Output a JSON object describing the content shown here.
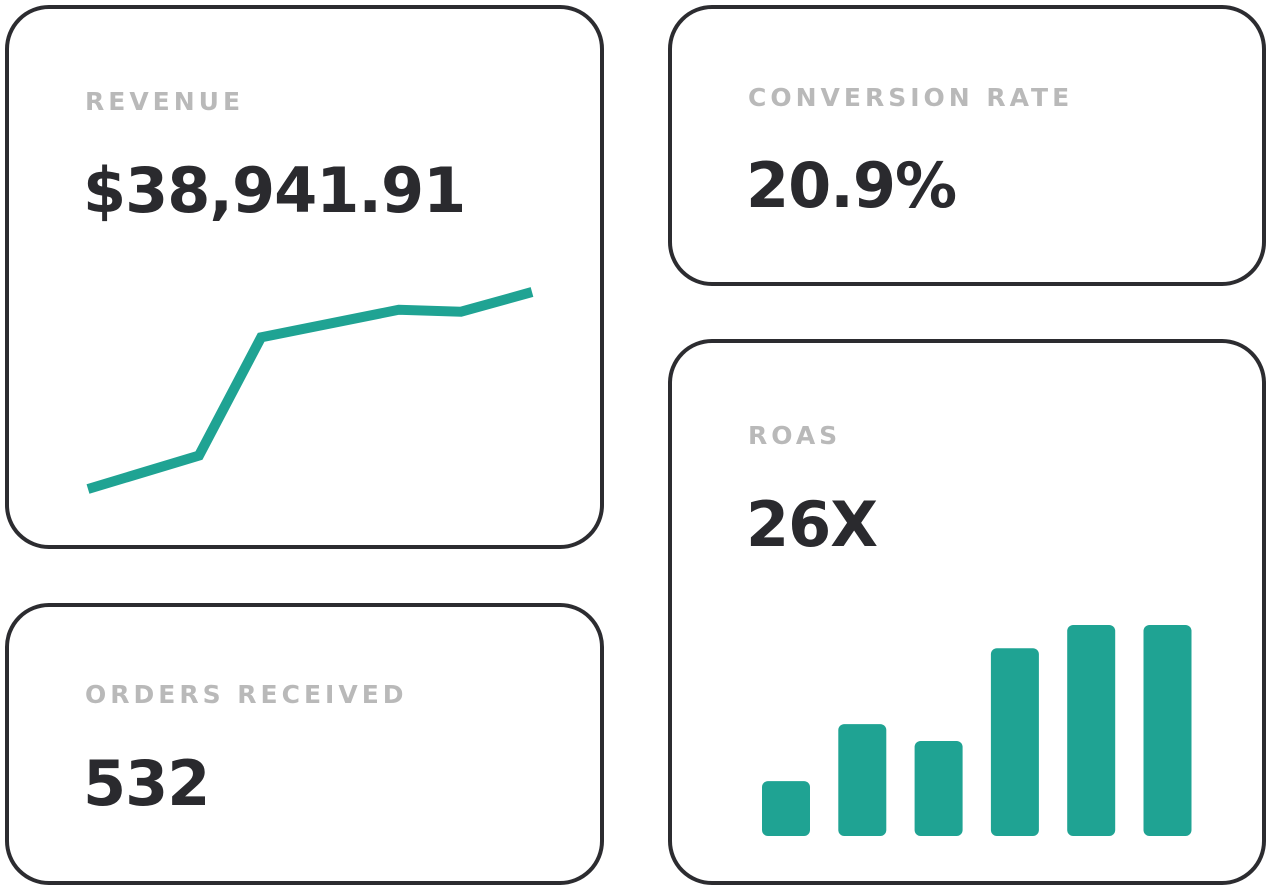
{
  "colors": {
    "accent": "#1fa393",
    "border": "#2c2c30",
    "label": "#b9b9b9",
    "value": "#2a2a2e"
  },
  "cards": {
    "revenue": {
      "label": "REVENUE",
      "value": "$38,941.91"
    },
    "conversion": {
      "label": "CONVERSION RATE",
      "value": "20.9%"
    },
    "orders": {
      "label": "ORDERS RECEIVED",
      "value": "532"
    },
    "roas": {
      "label": "ROAS",
      "value": "26X"
    }
  },
  "chart_data": [
    {
      "type": "line",
      "note_units": "relative",
      "x": [
        0,
        25,
        39,
        70,
        84,
        100
      ],
      "values": [
        0,
        17,
        77,
        91,
        90,
        100
      ],
      "ylim": [
        0,
        100
      ],
      "grid": false
    },
    {
      "type": "bar",
      "values": [
        26,
        53,
        45,
        89,
        100,
        100
      ],
      "ylim": [
        0,
        100
      ],
      "grid": false
    }
  ]
}
